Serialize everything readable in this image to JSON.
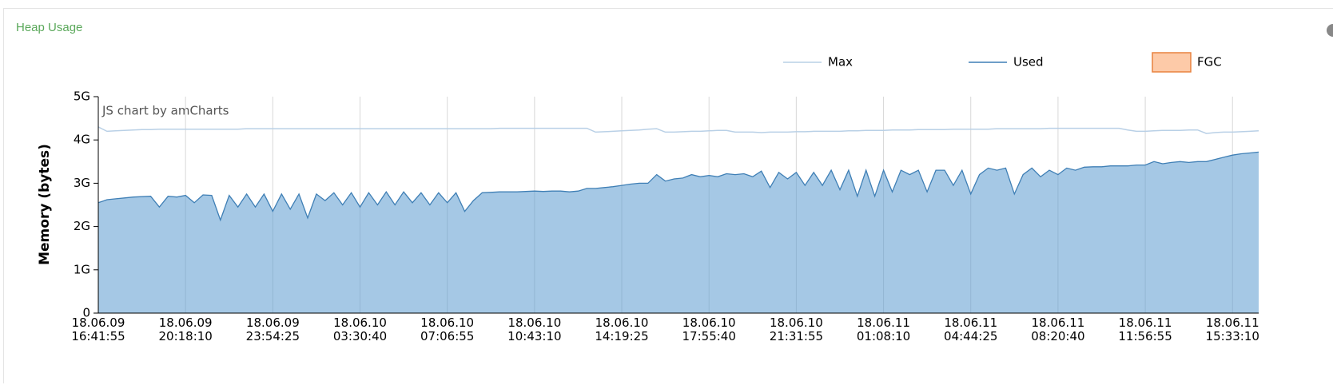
{
  "header": {
    "title": "Heap Usage"
  },
  "chart_data": {
    "type": "area",
    "y_label": "Memory (bytes)",
    "watermark": "JS chart by amCharts",
    "ylim": [
      0,
      5
    ],
    "yticks": [
      0,
      {
        "value": 1,
        "label": "1G"
      },
      {
        "value": 2,
        "label": "2G"
      },
      {
        "value": 3,
        "label": "3G"
      },
      {
        "value": 4,
        "label": "4G"
      },
      {
        "value": 5,
        "label": "5G"
      }
    ],
    "grid": "x",
    "categories": [
      "18.06.09 16:41:55",
      null,
      null,
      null,
      null,
      null,
      null,
      null,
      null,
      null,
      "18.06.09 20:18:10",
      null,
      null,
      null,
      null,
      null,
      null,
      null,
      null,
      null,
      "18.06.09 23:54:25",
      null,
      null,
      null,
      null,
      null,
      null,
      null,
      null,
      null,
      "18.06.10 03:30:40",
      null,
      null,
      null,
      null,
      null,
      null,
      null,
      null,
      null,
      "18.06.10 07:06:55",
      null,
      null,
      null,
      null,
      null,
      null,
      null,
      null,
      null,
      "18.06.10 10:43:10",
      null,
      null,
      null,
      null,
      null,
      null,
      null,
      null,
      null,
      "18.06.10 14:19:25",
      null,
      null,
      null,
      null,
      null,
      null,
      null,
      null,
      null,
      "18.06.10 17:55:40",
      null,
      null,
      null,
      null,
      null,
      null,
      null,
      null,
      null,
      "18.06.10 21:31:55",
      null,
      null,
      null,
      null,
      null,
      null,
      null,
      null,
      null,
      "18.06.11 01:08:10",
      null,
      null,
      null,
      null,
      null,
      null,
      null,
      null,
      null,
      "18.06.11 04:44:25",
      null,
      null,
      null,
      null,
      null,
      null,
      null,
      null,
      null,
      "18.06.11 08:20:40",
      null,
      null,
      null,
      null,
      null,
      null,
      null,
      null,
      null,
      "18.06.11 11:56:55",
      null,
      null,
      null,
      null,
      null,
      null,
      null,
      null,
      null,
      "18.06.11 15:33:10",
      null,
      null,
      null
    ],
    "series": [
      {
        "name": "Max",
        "color": "#b9d0e6",
        "style": "line",
        "values": [
          4.3,
          4.2,
          4.21,
          4.22,
          4.23,
          4.24,
          4.24,
          4.25,
          4.25,
          4.25,
          4.25,
          4.25,
          4.25,
          4.25,
          4.25,
          4.25,
          4.25,
          4.26,
          4.26,
          4.26,
          4.26,
          4.26,
          4.26,
          4.26,
          4.26,
          4.26,
          4.26,
          4.26,
          4.26,
          4.26,
          4.26,
          4.26,
          4.26,
          4.26,
          4.26,
          4.26,
          4.26,
          4.26,
          4.26,
          4.26,
          4.26,
          4.26,
          4.26,
          4.26,
          4.26,
          4.26,
          4.27,
          4.27,
          4.27,
          4.27,
          4.27,
          4.27,
          4.27,
          4.27,
          4.27,
          4.27,
          4.27,
          4.18,
          4.19,
          4.2,
          4.21,
          4.22,
          4.23,
          4.25,
          4.26,
          4.18,
          4.18,
          4.19,
          4.2,
          4.2,
          4.21,
          4.22,
          4.22,
          4.18,
          4.18,
          4.18,
          4.17,
          4.18,
          4.18,
          4.18,
          4.19,
          4.19,
          4.2,
          4.2,
          4.2,
          4.2,
          4.21,
          4.21,
          4.22,
          4.22,
          4.22,
          4.23,
          4.23,
          4.23,
          4.24,
          4.24,
          4.24,
          4.24,
          4.25,
          4.25,
          4.25,
          4.25,
          4.25,
          4.26,
          4.26,
          4.26,
          4.26,
          4.26,
          4.26,
          4.27,
          4.27,
          4.27,
          4.27,
          4.27,
          4.27,
          4.27,
          4.27,
          4.27,
          4.23,
          4.2,
          4.2,
          4.21,
          4.22,
          4.22,
          4.22,
          4.23,
          4.23,
          4.15,
          4.17,
          4.18,
          4.18,
          4.19,
          4.2,
          4.21
        ]
      },
      {
        "name": "Used",
        "color": "#3f7fb5",
        "fill": "#5b9bd0",
        "style": "area",
        "values": [
          2.55,
          2.62,
          2.64,
          2.66,
          2.68,
          2.69,
          2.7,
          2.45,
          2.7,
          2.68,
          2.72,
          2.55,
          2.73,
          2.72,
          2.15,
          2.72,
          2.45,
          2.75,
          2.45,
          2.75,
          2.35,
          2.75,
          2.4,
          2.75,
          2.2,
          2.75,
          2.6,
          2.78,
          2.5,
          2.78,
          2.45,
          2.78,
          2.5,
          2.8,
          2.5,
          2.8,
          2.55,
          2.78,
          2.5,
          2.78,
          2.55,
          2.78,
          2.35,
          2.6,
          2.78,
          2.79,
          2.8,
          2.8,
          2.8,
          2.81,
          2.82,
          2.81,
          2.82,
          2.82,
          2.8,
          2.82,
          2.88,
          2.88,
          2.9,
          2.92,
          2.95,
          2.98,
          3.0,
          3.0,
          3.2,
          3.05,
          3.1,
          3.12,
          3.2,
          3.15,
          3.18,
          3.15,
          3.22,
          3.2,
          3.22,
          3.15,
          3.28,
          2.9,
          3.25,
          3.1,
          3.25,
          2.95,
          3.25,
          2.95,
          3.3,
          2.85,
          3.3,
          2.7,
          3.3,
          2.7,
          3.3,
          2.8,
          3.3,
          3.2,
          3.3,
          2.8,
          3.3,
          3.3,
          2.95,
          3.3,
          2.75,
          3.2,
          3.35,
          3.3,
          3.35,
          2.75,
          3.2,
          3.35,
          3.15,
          3.3,
          3.2,
          3.35,
          3.3,
          3.37,
          3.38,
          3.38,
          3.4,
          3.4,
          3.4,
          3.42,
          3.42,
          3.5,
          3.45,
          3.48,
          3.5,
          3.48,
          3.5,
          3.5,
          3.55,
          3.6,
          3.65,
          3.68,
          3.7,
          3.72
        ]
      },
      {
        "name": "FGC",
        "color": "#fdcaa8",
        "stroke": "#e8823f",
        "style": "column",
        "values": [
          null,
          null,
          null,
          null,
          null,
          null,
          null,
          null,
          null,
          null,
          null,
          null,
          null,
          null,
          null,
          null,
          null,
          null,
          null,
          null,
          null,
          null,
          null,
          null,
          null,
          null,
          null,
          null,
          null,
          null,
          null,
          null,
          null,
          null,
          null,
          null,
          null,
          null,
          null,
          null,
          null,
          null,
          null,
          null,
          null,
          null,
          null,
          null,
          null,
          null,
          null,
          null,
          null,
          null,
          null,
          null,
          null,
          null,
          null,
          null,
          null,
          null,
          null,
          null,
          null,
          null,
          null,
          null,
          null,
          null,
          null,
          null,
          null,
          null,
          null,
          null,
          null,
          null,
          null,
          null,
          null,
          null,
          null,
          null,
          null,
          null,
          null,
          null,
          null,
          null,
          null,
          null,
          null,
          null,
          null,
          null,
          null,
          null,
          null,
          null,
          null,
          null,
          null,
          null,
          null,
          null,
          null,
          null,
          null,
          null,
          null,
          null,
          null,
          null,
          null,
          null,
          null,
          null,
          null,
          null,
          null,
          null,
          null,
          null,
          null,
          null,
          null,
          null,
          null,
          null,
          null,
          null,
          null,
          null
        ]
      }
    ]
  }
}
